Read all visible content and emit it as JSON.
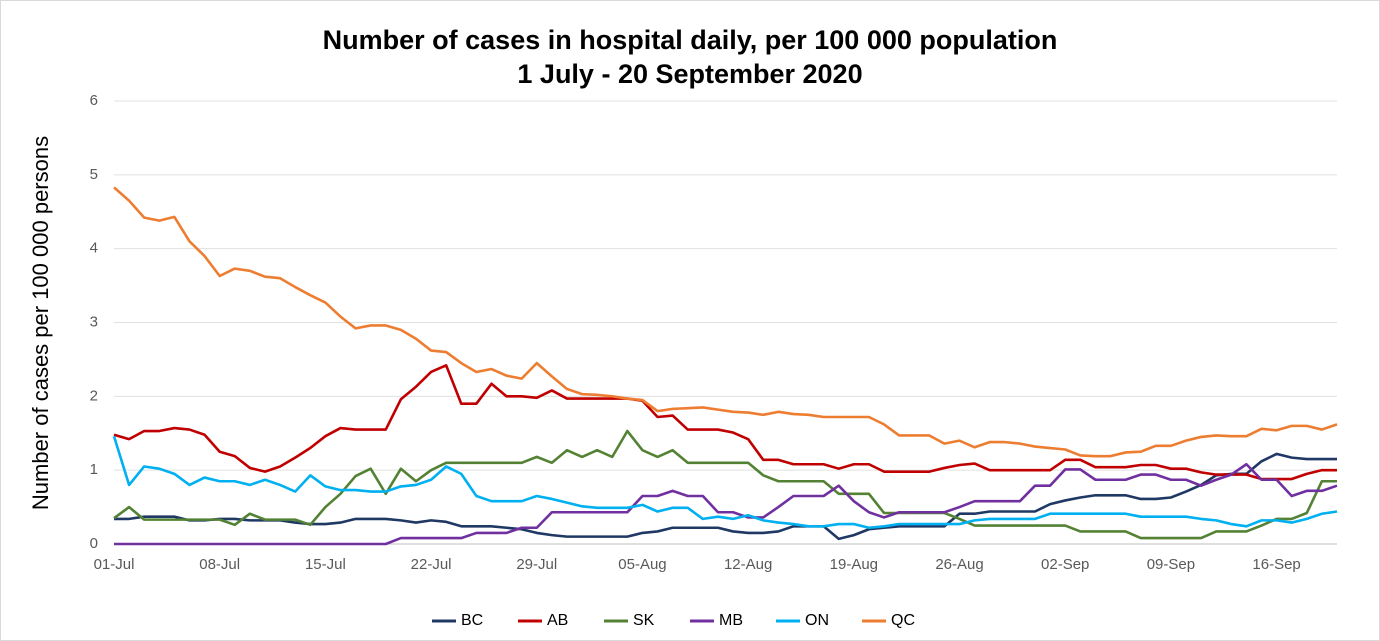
{
  "chart_data": {
    "type": "line",
    "title": "Number of cases in hospital daily, per 100 000 population",
    "subtitle": "1 July - 20 September 2020",
    "y_label": "Number of cases per 100 000 persons",
    "categories": [
      "01-Jul",
      null,
      null,
      null,
      null,
      null,
      null,
      "08-Jul",
      null,
      null,
      null,
      null,
      null,
      null,
      "15-Jul",
      null,
      null,
      null,
      null,
      null,
      null,
      "22-Jul",
      null,
      null,
      null,
      null,
      null,
      null,
      "29-Jul",
      null,
      null,
      null,
      null,
      null,
      null,
      "05-Aug",
      null,
      null,
      null,
      null,
      null,
      null,
      "12-Aug",
      null,
      null,
      null,
      null,
      null,
      null,
      "19-Aug",
      null,
      null,
      null,
      null,
      null,
      null,
      "26-Aug",
      null,
      null,
      null,
      null,
      null,
      null,
      "02-Sep",
      null,
      null,
      null,
      null,
      null,
      null,
      "09-Sep",
      null,
      null,
      null,
      null,
      null,
      null,
      "16-Sep",
      null,
      null,
      null,
      null
    ],
    "ylim": [
      0,
      6
    ],
    "yticks": [
      0,
      1,
      2,
      3,
      4,
      5,
      6
    ],
    "grid": true,
    "legend": "bottom",
    "series": [
      {
        "name": "BC",
        "color": "#1f3864",
        "values": [
          0.34,
          0.34,
          0.37,
          0.37,
          0.37,
          0.32,
          0.32,
          0.34,
          0.34,
          0.32,
          0.32,
          0.32,
          0.29,
          0.27,
          0.27,
          0.29,
          0.34,
          0.34,
          0.34,
          0.32,
          0.29,
          0.32,
          0.3,
          0.24,
          0.24,
          0.24,
          0.22,
          0.2,
          0.15,
          0.12,
          0.1,
          0.1,
          0.1,
          0.1,
          0.1,
          0.15,
          0.17,
          0.22,
          0.22,
          0.22,
          0.22,
          0.17,
          0.15,
          0.15,
          0.17,
          0.24,
          0.24,
          0.24,
          0.07,
          0.12,
          0.2,
          0.22,
          0.24,
          0.24,
          0.24,
          0.24,
          0.41,
          0.41,
          0.44,
          0.44,
          0.44,
          0.44,
          0.54,
          0.59,
          0.63,
          0.66,
          0.66,
          0.66,
          0.61,
          0.61,
          0.63,
          0.71,
          0.8,
          0.93,
          0.95,
          0.95,
          1.12,
          1.22,
          1.17,
          1.15,
          1.15,
          1.15
        ]
      },
      {
        "name": "AB",
        "color": "#c00000",
        "values": [
          1.48,
          1.42,
          1.53,
          1.53,
          1.57,
          1.55,
          1.48,
          1.25,
          1.19,
          1.03,
          0.98,
          1.05,
          1.17,
          1.3,
          1.46,
          1.57,
          1.55,
          1.55,
          1.55,
          1.96,
          2.13,
          2.33,
          2.42,
          1.9,
          1.9,
          2.17,
          2.0,
          2.0,
          1.98,
          2.08,
          1.97,
          1.97,
          1.97,
          1.97,
          1.97,
          1.94,
          1.72,
          1.74,
          1.55,
          1.55,
          1.55,
          1.51,
          1.42,
          1.14,
          1.14,
          1.08,
          1.08,
          1.08,
          1.02,
          1.08,
          1.08,
          0.98,
          0.98,
          0.98,
          0.98,
          1.03,
          1.07,
          1.09,
          1.0,
          1.0,
          1.0,
          1.0,
          1.0,
          1.14,
          1.14,
          1.04,
          1.04,
          1.04,
          1.07,
          1.07,
          1.02,
          1.02,
          0.97,
          0.94,
          0.94,
          0.94,
          0.88,
          0.88,
          0.88,
          0.95,
          1.0,
          1.0
        ]
      },
      {
        "name": "SK",
        "color": "#548235",
        "values": [
          0.35,
          0.5,
          0.33,
          0.33,
          0.33,
          0.33,
          0.33,
          0.33,
          0.26,
          0.41,
          0.33,
          0.33,
          0.33,
          0.26,
          0.5,
          0.68,
          0.92,
          1.02,
          0.68,
          1.02,
          0.85,
          1.0,
          1.1,
          1.1,
          1.1,
          1.1,
          1.1,
          1.1,
          1.18,
          1.1,
          1.27,
          1.18,
          1.27,
          1.18,
          1.53,
          1.27,
          1.18,
          1.27,
          1.1,
          1.1,
          1.1,
          1.1,
          1.1,
          0.93,
          0.85,
          0.85,
          0.85,
          0.85,
          0.68,
          0.68,
          0.68,
          0.42,
          0.42,
          0.42,
          0.42,
          0.42,
          0.34,
          0.25,
          0.25,
          0.25,
          0.25,
          0.25,
          0.25,
          0.25,
          0.17,
          0.17,
          0.17,
          0.17,
          0.08,
          0.08,
          0.08,
          0.08,
          0.08,
          0.17,
          0.17,
          0.17,
          0.25,
          0.34,
          0.34,
          0.42,
          0.85,
          0.85
        ]
      },
      {
        "name": "MB",
        "color": "#7030a0",
        "values": [
          0,
          0,
          0,
          0,
          0,
          0,
          0,
          0,
          0,
          0,
          0,
          0,
          0,
          0,
          0,
          0,
          0,
          0,
          0,
          0.08,
          0.08,
          0.08,
          0.08,
          0.08,
          0.15,
          0.15,
          0.15,
          0.22,
          0.22,
          0.43,
          0.43,
          0.43,
          0.43,
          0.43,
          0.43,
          0.65,
          0.65,
          0.72,
          0.65,
          0.65,
          0.43,
          0.43,
          0.36,
          0.36,
          0.5,
          0.65,
          0.65,
          0.65,
          0.79,
          0.58,
          0.43,
          0.36,
          0.43,
          0.43,
          0.43,
          0.43,
          0.5,
          0.58,
          0.58,
          0.58,
          0.58,
          0.79,
          0.79,
          1.01,
          1.01,
          0.87,
          0.87,
          0.87,
          0.94,
          0.94,
          0.87,
          0.87,
          0.79,
          0.87,
          0.94,
          1.08,
          0.87,
          0.87,
          0.65,
          0.72,
          0.72,
          0.79
        ]
      },
      {
        "name": "ON",
        "color": "#00b0f0",
        "values": [
          1.46,
          0.8,
          1.05,
          1.02,
          0.95,
          0.8,
          0.9,
          0.85,
          0.85,
          0.8,
          0.87,
          0.8,
          0.71,
          0.93,
          0.78,
          0.73,
          0.73,
          0.71,
          0.71,
          0.78,
          0.8,
          0.87,
          1.05,
          0.95,
          0.65,
          0.58,
          0.58,
          0.58,
          0.65,
          0.61,
          0.56,
          0.51,
          0.49,
          0.49,
          0.49,
          0.53,
          0.44,
          0.49,
          0.49,
          0.34,
          0.37,
          0.34,
          0.39,
          0.32,
          0.29,
          0.27,
          0.24,
          0.24,
          0.27,
          0.27,
          0.22,
          0.24,
          0.27,
          0.27,
          0.27,
          0.27,
          0.27,
          0.32,
          0.34,
          0.34,
          0.34,
          0.34,
          0.41,
          0.41,
          0.41,
          0.41,
          0.41,
          0.41,
          0.37,
          0.37,
          0.37,
          0.37,
          0.34,
          0.32,
          0.27,
          0.24,
          0.32,
          0.32,
          0.29,
          0.34,
          0.41,
          0.44
        ]
      },
      {
        "name": "QC",
        "color": "#ed7d31",
        "values": [
          4.83,
          4.65,
          4.42,
          4.38,
          4.43,
          4.1,
          3.9,
          3.63,
          3.73,
          3.7,
          3.62,
          3.6,
          3.48,
          3.37,
          3.27,
          3.08,
          2.92,
          2.96,
          2.96,
          2.9,
          2.78,
          2.62,
          2.6,
          2.45,
          2.33,
          2.37,
          2.28,
          2.24,
          2.45,
          2.27,
          2.1,
          2.03,
          2.02,
          2.0,
          1.97,
          1.95,
          1.8,
          1.83,
          1.84,
          1.85,
          1.82,
          1.79,
          1.78,
          1.75,
          1.79,
          1.76,
          1.75,
          1.72,
          1.72,
          1.72,
          1.72,
          1.62,
          1.47,
          1.47,
          1.47,
          1.36,
          1.4,
          1.31,
          1.38,
          1.38,
          1.36,
          1.32,
          1.3,
          1.28,
          1.2,
          1.19,
          1.19,
          1.24,
          1.25,
          1.33,
          1.33,
          1.4,
          1.45,
          1.47,
          1.46,
          1.46,
          1.56,
          1.54,
          1.6,
          1.6,
          1.55,
          1.62
        ]
      }
    ]
  }
}
